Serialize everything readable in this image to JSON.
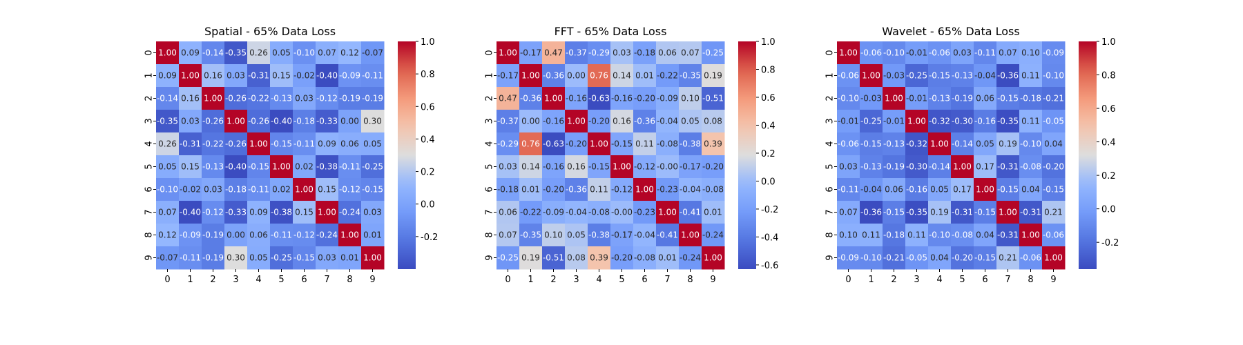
{
  "chart_data": [
    {
      "type": "heatmap",
      "title": "Spatial - 65% Data Loss",
      "x_categories": [
        "0",
        "1",
        "2",
        "3",
        "4",
        "5",
        "6",
        "7",
        "8",
        "9"
      ],
      "y_categories": [
        "0",
        "1",
        "2",
        "3",
        "4",
        "5",
        "6",
        "7",
        "8",
        "9"
      ],
      "values": [
        [
          "1.00",
          "0.09",
          "-0.14",
          "-0.35",
          "0.26",
          "0.05",
          "-0.10",
          "0.07",
          "0.12",
          "-0.07"
        ],
        [
          "0.09",
          "1.00",
          "0.16",
          "0.03",
          "-0.31",
          "0.15",
          "-0.02",
          "-0.40",
          "-0.09",
          "-0.11"
        ],
        [
          "-0.14",
          "0.16",
          "1.00",
          "-0.26",
          "-0.22",
          "-0.13",
          "0.03",
          "-0.12",
          "-0.19",
          "-0.19"
        ],
        [
          "-0.35",
          "0.03",
          "-0.26",
          "1.00",
          "-0.26",
          "-0.40",
          "-0.18",
          "-0.33",
          "0.00",
          "0.30"
        ],
        [
          "0.26",
          "-0.31",
          "-0.22",
          "-0.26",
          "1.00",
          "-0.15",
          "-0.11",
          "0.09",
          "0.06",
          "0.05"
        ],
        [
          "0.05",
          "0.15",
          "-0.13",
          "-0.40",
          "-0.15",
          "1.00",
          "0.02",
          "-0.38",
          "-0.11",
          "-0.25"
        ],
        [
          "-0.10",
          "-0.02",
          "0.03",
          "-0.18",
          "-0.11",
          "0.02",
          "1.00",
          "0.15",
          "-0.12",
          "-0.15"
        ],
        [
          "0.07",
          "-0.40",
          "-0.12",
          "-0.33",
          "0.09",
          "-0.38",
          "0.15",
          "1.00",
          "-0.24",
          "0.03"
        ],
        [
          "0.12",
          "-0.09",
          "-0.19",
          "0.00",
          "0.06",
          "-0.11",
          "-0.12",
          "-0.24",
          "1.00",
          "0.01"
        ],
        [
          "-0.07",
          "-0.11",
          "-0.19",
          "0.30",
          "0.05",
          "-0.25",
          "-0.15",
          "0.03",
          "0.01",
          "1.00"
        ]
      ],
      "vmin": -0.4,
      "vmax": 1.0,
      "colorbar_ticks": [
        "1.0",
        "0.8",
        "0.6",
        "0.4",
        "0.2",
        "0.0",
        "-0.2"
      ],
      "colormap": "coolwarm"
    },
    {
      "type": "heatmap",
      "title": "FFT - 65% Data Loss",
      "x_categories": [
        "0",
        "1",
        "2",
        "3",
        "4",
        "5",
        "6",
        "7",
        "8",
        "9"
      ],
      "y_categories": [
        "0",
        "1",
        "2",
        "3",
        "4",
        "5",
        "6",
        "7",
        "8",
        "9"
      ],
      "values": [
        [
          "1.00",
          "-0.17",
          "0.47",
          "-0.37",
          "-0.29",
          "0.03",
          "-0.18",
          "0.06",
          "0.07",
          "-0.25"
        ],
        [
          "-0.17",
          "1.00",
          "-0.36",
          "0.00",
          "0.76",
          "0.14",
          "0.01",
          "-0.22",
          "-0.35",
          "0.19"
        ],
        [
          "0.47",
          "-0.36",
          "1.00",
          "-0.16",
          "-0.63",
          "-0.16",
          "-0.20",
          "-0.09",
          "0.10",
          "-0.51"
        ],
        [
          "-0.37",
          "0.00",
          "-0.16",
          "1.00",
          "-0.20",
          "0.16",
          "-0.36",
          "-0.04",
          "0.05",
          "0.08"
        ],
        [
          "-0.29",
          "0.76",
          "-0.63",
          "-0.20",
          "1.00",
          "-0.15",
          "0.11",
          "-0.08",
          "-0.38",
          "0.39"
        ],
        [
          "0.03",
          "0.14",
          "-0.16",
          "0.16",
          "-0.15",
          "1.00",
          "-0.12",
          "-0.00",
          "-0.17",
          "-0.20"
        ],
        [
          "-0.18",
          "0.01",
          "-0.20",
          "-0.36",
          "0.11",
          "-0.12",
          "1.00",
          "-0.23",
          "-0.04",
          "-0.08"
        ],
        [
          "0.06",
          "-0.22",
          "-0.09",
          "-0.04",
          "-0.08",
          "-0.00",
          "-0.23",
          "1.00",
          "-0.41",
          "0.01"
        ],
        [
          "0.07",
          "-0.35",
          "0.10",
          "0.05",
          "-0.38",
          "-0.17",
          "-0.04",
          "-0.41",
          "1.00",
          "-0.24"
        ],
        [
          "-0.25",
          "0.19",
          "-0.51",
          "0.08",
          "0.39",
          "-0.20",
          "-0.08",
          "0.01",
          "-0.24",
          "1.00"
        ]
      ],
      "vmin": -0.63,
      "vmax": 1.0,
      "colorbar_ticks": [
        "1.0",
        "0.8",
        "0.6",
        "0.4",
        "0.2",
        "0.0",
        "-0.2",
        "-0.4",
        "-0.6"
      ],
      "colormap": "coolwarm"
    },
    {
      "type": "heatmap",
      "title": "Wavelet - 65% Data Loss",
      "x_categories": [
        "0",
        "1",
        "2",
        "3",
        "4",
        "5",
        "6",
        "7",
        "8",
        "9"
      ],
      "y_categories": [
        "0",
        "1",
        "2",
        "3",
        "4",
        "5",
        "6",
        "7",
        "8",
        "9"
      ],
      "values": [
        [
          "1.00",
          "-0.06",
          "-0.10",
          "-0.01",
          "-0.06",
          "0.03",
          "-0.11",
          "0.07",
          "0.10",
          "-0.09"
        ],
        [
          "-0.06",
          "1.00",
          "-0.03",
          "-0.25",
          "-0.15",
          "-0.13",
          "-0.04",
          "-0.36",
          "0.11",
          "-0.10"
        ],
        [
          "-0.10",
          "-0.03",
          "1.00",
          "-0.01",
          "-0.13",
          "-0.19",
          "0.06",
          "-0.15",
          "-0.18",
          "-0.21"
        ],
        [
          "-0.01",
          "-0.25",
          "-0.01",
          "1.00",
          "-0.32",
          "-0.30",
          "-0.16",
          "-0.35",
          "0.11",
          "-0.05"
        ],
        [
          "-0.06",
          "-0.15",
          "-0.13",
          "-0.32",
          "1.00",
          "-0.14",
          "0.05",
          "0.19",
          "-0.10",
          "0.04"
        ],
        [
          "0.03",
          "-0.13",
          "-0.19",
          "-0.30",
          "-0.14",
          "1.00",
          "0.17",
          "-0.31",
          "-0.08",
          "-0.20"
        ],
        [
          "-0.11",
          "-0.04",
          "0.06",
          "-0.16",
          "0.05",
          "0.17",
          "1.00",
          "-0.15",
          "0.04",
          "-0.15"
        ],
        [
          "0.07",
          "-0.36",
          "-0.15",
          "-0.35",
          "0.19",
          "-0.31",
          "-0.15",
          "1.00",
          "-0.31",
          "0.21"
        ],
        [
          "0.10",
          "0.11",
          "-0.18",
          "0.11",
          "-0.10",
          "-0.08",
          "0.04",
          "-0.31",
          "1.00",
          "-0.06"
        ],
        [
          "-0.09",
          "-0.10",
          "-0.21",
          "-0.05",
          "0.04",
          "-0.20",
          "-0.15",
          "0.21",
          "-0.06",
          "1.00"
        ]
      ],
      "vmin": -0.36,
      "vmax": 1.0,
      "colorbar_ticks": [
        "1.0",
        "0.8",
        "0.6",
        "0.4",
        "0.2",
        "0.0",
        "-0.2"
      ],
      "colormap": "coolwarm"
    }
  ]
}
